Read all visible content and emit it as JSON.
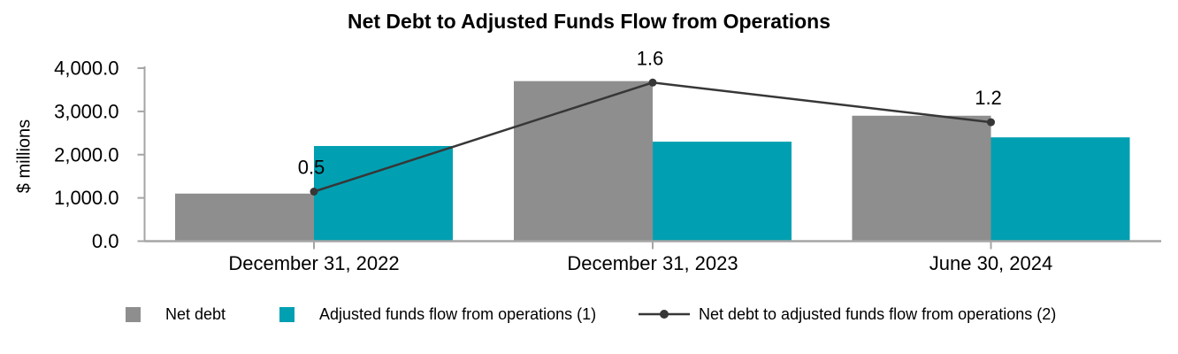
{
  "title": "Net Debt to Adjusted Funds Flow from Operations",
  "y_axis": {
    "label": "$ millions",
    "ticks": [
      {
        "value": 4000,
        "label": "4,000.0"
      },
      {
        "value": 3000,
        "label": "3,000.0"
      },
      {
        "value": 2000,
        "label": "2,000.0"
      },
      {
        "value": 1000,
        "label": "1,000.0"
      },
      {
        "value": 0,
        "label": "0.0"
      }
    ]
  },
  "legend": [
    {
      "label": "Net debt",
      "swatch": "square",
      "color": "#8E8E8E"
    },
    {
      "label": "Adjusted funds flow from operations (1)",
      "swatch": "square",
      "color": "#00A0B2"
    },
    {
      "label": "Net debt to adjusted funds flow from operations (2)",
      "swatch": "line-marker",
      "color": "#373737"
    }
  ],
  "colors": {
    "axis": "#A5A5A5",
    "text": "#000000",
    "background": "#FFFFFF"
  },
  "chart_data": {
    "type": "combo-bar-line",
    "categories": [
      "December 31, 2022",
      "December 31, 2023",
      "June 30, 2024"
    ],
    "series": [
      {
        "name": "Net debt",
        "type": "bar",
        "axis": "primary",
        "color": "#8E8E8E",
        "values": [
          1100,
          3700,
          2900
        ]
      },
      {
        "name": "Adjusted funds flow from operations (1)",
        "type": "bar",
        "axis": "primary",
        "color": "#00A0B2",
        "values": [
          2200,
          2300,
          2400
        ]
      },
      {
        "name": "Net debt to adjusted funds flow from operations (2)",
        "type": "line",
        "axis": "secondary",
        "color": "#373737",
        "values": [
          0.5,
          1.6,
          1.2
        ],
        "point_labels": [
          "0.5",
          "1.6",
          "1.2"
        ]
      }
    ],
    "title": "Net Debt to Adjusted Funds Flow from Operations",
    "xlabel": "",
    "ylabel": "$ millions",
    "ylim": [
      0,
      4000
    ],
    "y2lim": [
      0,
      1.75
    ],
    "grid": false,
    "legend_position": "bottom"
  }
}
